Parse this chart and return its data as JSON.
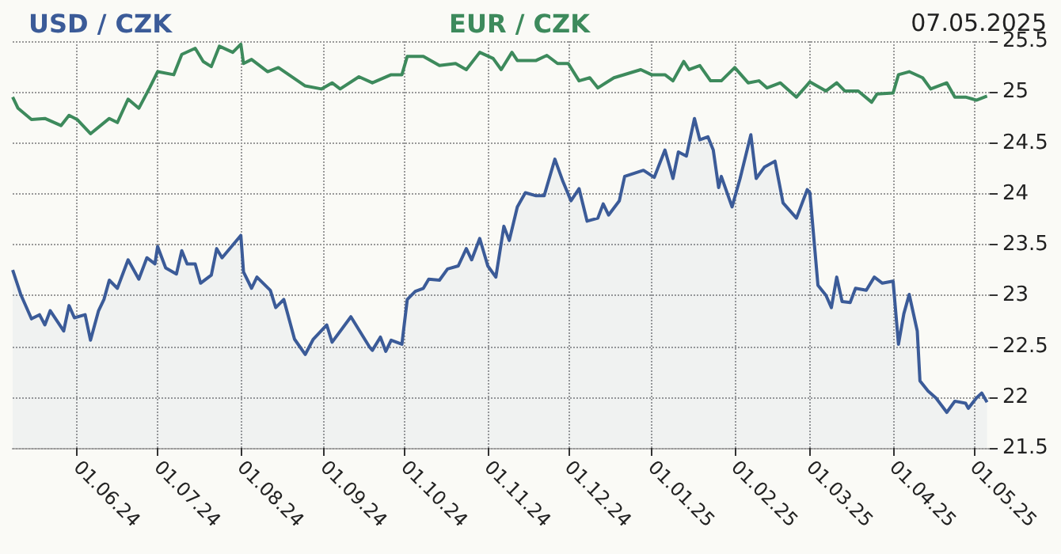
{
  "chart_data": {
    "type": "line",
    "title": "07.05.2025",
    "legend": "top left",
    "grid": true,
    "xlim": [
      "2024-05-08",
      "2025-05-07"
    ],
    "xticks": [
      {
        "value": "2024-06-01",
        "label": "01.06.24"
      },
      {
        "value": "2024-07-01",
        "label": "01.07.24"
      },
      {
        "value": "2024-08-01",
        "label": "01.08.24"
      },
      {
        "value": "2024-09-01",
        "label": "01.09.24"
      },
      {
        "value": "2024-10-01",
        "label": "01.10.24"
      },
      {
        "value": "2024-11-01",
        "label": "01.11.24"
      },
      {
        "value": "2024-12-01",
        "label": "01.12.24"
      },
      {
        "value": "2025-01-01",
        "label": "01.01.25"
      },
      {
        "value": "2025-02-01",
        "label": "01.02.25"
      },
      {
        "value": "2025-03-01",
        "label": "01.03.25"
      },
      {
        "value": "2025-04-01",
        "label": "01.04.25"
      },
      {
        "value": "2025-05-01",
        "label": "01.05.25"
      }
    ],
    "ylim": [
      21.5,
      25.5
    ],
    "yticks": [
      21.5,
      22,
      22.5,
      23,
      23.5,
      24,
      24.5,
      25,
      25.5
    ],
    "series": [
      {
        "name": "USD / CZK",
        "type": "area",
        "color": "#3b5b98",
        "x": [
          "2024-05-08",
          "2024-05-11",
          "2024-05-15",
          "2024-05-18",
          "2024-05-20",
          "2024-05-22",
          "2024-05-27",
          "2024-05-29",
          "2024-05-31",
          "2024-06-04",
          "2024-06-06",
          "2024-06-09",
          "2024-06-11",
          "2024-06-13",
          "2024-06-16",
          "2024-06-20",
          "2024-06-24",
          "2024-06-27",
          "2024-06-30",
          "2024-07-01",
          "2024-07-04",
          "2024-07-08",
          "2024-07-10",
          "2024-07-12",
          "2024-07-15",
          "2024-07-17",
          "2024-07-21",
          "2024-07-23",
          "2024-07-25",
          "2024-08-01",
          "2024-08-02",
          "2024-08-05",
          "2024-08-07",
          "2024-08-12",
          "2024-08-14",
          "2024-08-17",
          "2024-08-21",
          "2024-08-25",
          "2024-08-28",
          "2024-09-02",
          "2024-09-04",
          "2024-09-11",
          "2024-09-18",
          "2024-09-19",
          "2024-09-22",
          "2024-09-24",
          "2024-09-26",
          "2024-09-30",
          "2024-10-02",
          "2024-10-05",
          "2024-10-08",
          "2024-10-10",
          "2024-10-14",
          "2024-10-17",
          "2024-10-21",
          "2024-10-24",
          "2024-10-26",
          "2024-10-29",
          "2024-11-01",
          "2024-11-04",
          "2024-11-07",
          "2024-11-09",
          "2024-11-12",
          "2024-11-15",
          "2024-11-19",
          "2024-11-22",
          "2024-11-26",
          "2024-11-29",
          "2024-12-02",
          "2024-12-05",
          "2024-12-08",
          "2024-12-12",
          "2024-12-14",
          "2024-12-16",
          "2024-12-20",
          "2024-12-22",
          "2024-12-29",
          "2025-01-02",
          "2025-01-06",
          "2025-01-09",
          "2025-01-11",
          "2025-01-14",
          "2025-01-17",
          "2025-01-19",
          "2025-01-22",
          "2025-01-24",
          "2025-01-26",
          "2025-01-27",
          "2025-01-31",
          "2025-02-03",
          "2025-02-07",
          "2025-02-09",
          "2025-02-12",
          "2025-02-16",
          "2025-02-19",
          "2025-02-24",
          "2025-02-28",
          "2025-03-01",
          "2025-03-04",
          "2025-03-07",
          "2025-03-09",
          "2025-03-11",
          "2025-03-13",
          "2025-03-16",
          "2025-03-18",
          "2025-03-22",
          "2025-03-25",
          "2025-03-28",
          "2025-04-01",
          "2025-04-03",
          "2025-04-05",
          "2025-04-07",
          "2025-04-10",
          "2025-04-11",
          "2025-04-14",
          "2025-04-17",
          "2025-04-21",
          "2025-04-24",
          "2025-04-28",
          "2025-04-29",
          "2025-05-02",
          "2025-05-04",
          "2025-05-06"
        ],
        "values": [
          23.25,
          23.01,
          22.77,
          22.81,
          22.71,
          22.85,
          22.65,
          22.9,
          22.78,
          22.81,
          22.56,
          22.85,
          22.96,
          23.15,
          23.07,
          23.35,
          23.16,
          23.37,
          23.31,
          23.48,
          23.27,
          23.21,
          23.44,
          23.31,
          23.31,
          23.12,
          23.2,
          23.46,
          23.37,
          23.59,
          23.23,
          23.07,
          23.18,
          23.05,
          22.88,
          22.96,
          22.57,
          22.42,
          22.57,
          22.71,
          22.54,
          22.79,
          22.49,
          22.46,
          22.59,
          22.45,
          22.56,
          22.52,
          22.96,
          23.04,
          23.07,
          23.16,
          23.15,
          23.26,
          23.29,
          23.46,
          23.35,
          23.56,
          23.29,
          23.18,
          23.68,
          23.54,
          23.87,
          24.01,
          23.98,
          23.98,
          24.34,
          24.12,
          23.93,
          24.05,
          23.73,
          23.76,
          23.9,
          23.79,
          23.93,
          24.17,
          24.23,
          24.16,
          24.43,
          24.15,
          24.41,
          24.37,
          24.74,
          24.53,
          24.56,
          24.43,
          24.06,
          24.17,
          23.87,
          24.15,
          24.58,
          24.15,
          24.26,
          24.32,
          23.91,
          23.76,
          24.04,
          24.01,
          23.1,
          23.0,
          22.88,
          23.18,
          22.94,
          22.93,
          23.07,
          23.05,
          23.18,
          23.12,
          23.14,
          22.52,
          22.82,
          23.01,
          22.65,
          22.16,
          22.06,
          21.99,
          21.85,
          21.96,
          21.94,
          21.89,
          21.99,
          22.04,
          21.95
        ]
      },
      {
        "name": "EUR / CZK",
        "color": "#3d8a5c",
        "x": [
          "2024-05-08",
          "2024-05-10",
          "2024-05-15",
          "2024-05-20",
          "2024-05-26",
          "2024-05-29",
          "2024-06-01",
          "2024-06-06",
          "2024-06-13",
          "2024-06-16",
          "2024-06-20",
          "2024-06-24",
          "2024-06-28",
          "2024-07-01",
          "2024-07-07",
          "2024-07-10",
          "2024-07-15",
          "2024-07-18",
          "2024-07-21",
          "2024-07-24",
          "2024-07-29",
          "2024-08-01",
          "2024-08-02",
          "2024-08-05",
          "2024-08-11",
          "2024-08-15",
          "2024-08-25",
          "2024-08-31",
          "2024-09-04",
          "2024-09-07",
          "2024-09-14",
          "2024-09-19",
          "2024-09-26",
          "2024-09-30",
          "2024-10-02",
          "2024-10-08",
          "2024-10-14",
          "2024-10-20",
          "2024-10-24",
          "2024-10-29",
          "2024-11-03",
          "2024-11-06",
          "2024-11-10",
          "2024-11-12",
          "2024-11-19",
          "2024-11-23",
          "2024-11-27",
          "2024-12-01",
          "2024-12-05",
          "2024-12-09",
          "2024-12-12",
          "2024-12-18",
          "2024-12-28",
          "2025-01-01",
          "2025-01-06",
          "2025-01-09",
          "2025-01-13",
          "2025-01-15",
          "2025-01-19",
          "2025-01-23",
          "2025-01-27",
          "2025-02-01",
          "2025-02-06",
          "2025-02-10",
          "2025-02-13",
          "2025-02-18",
          "2025-02-24",
          "2025-03-01",
          "2025-03-07",
          "2025-03-11",
          "2025-03-14",
          "2025-03-19",
          "2025-03-24",
          "2025-03-26",
          "2025-04-01",
          "2025-04-03",
          "2025-04-07",
          "2025-04-12",
          "2025-04-15",
          "2025-04-21",
          "2025-04-24",
          "2025-04-28",
          "2025-05-02",
          "2025-05-06"
        ],
        "values": [
          24.95,
          24.84,
          24.73,
          24.74,
          24.67,
          24.77,
          24.73,
          24.59,
          24.74,
          24.7,
          24.93,
          24.84,
          25.04,
          25.2,
          25.17,
          25.37,
          25.43,
          25.3,
          25.25,
          25.45,
          25.39,
          25.47,
          25.28,
          25.32,
          25.2,
          25.24,
          25.06,
          25.03,
          25.09,
          25.03,
          25.15,
          25.09,
          25.17,
          25.17,
          25.35,
          25.35,
          25.26,
          25.28,
          25.22,
          25.39,
          25.33,
          25.22,
          25.39,
          25.31,
          25.31,
          25.36,
          25.28,
          25.28,
          25.11,
          25.14,
          25.04,
          25.14,
          25.22,
          25.17,
          25.17,
          25.11,
          25.3,
          25.22,
          25.26,
          25.11,
          25.11,
          25.24,
          25.09,
          25.11,
          25.04,
          25.09,
          24.95,
          25.1,
          25.01,
          25.09,
          25.01,
          25.01,
          24.9,
          24.98,
          24.99,
          25.17,
          25.2,
          25.14,
          25.03,
          25.09,
          24.95,
          24.95,
          24.92,
          24.96
        ]
      }
    ]
  }
}
